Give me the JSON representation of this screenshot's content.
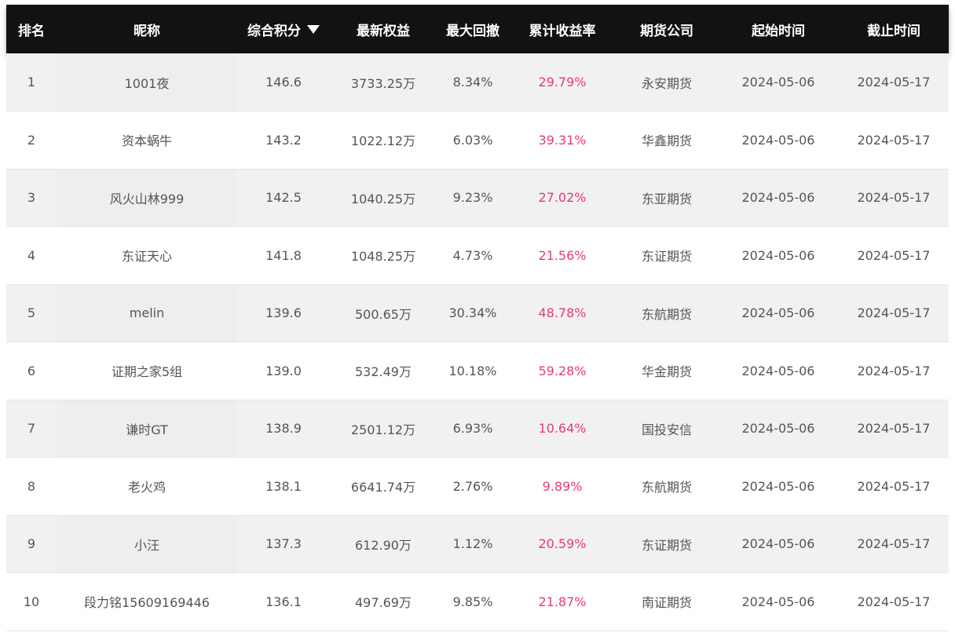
{
  "table": {
    "headers": {
      "rank": "排名",
      "nickname": "昵称",
      "score": "综合积分",
      "equity": "最新权益",
      "drawdown": "最大回撤",
      "return": "累计收益率",
      "company": "期货公司",
      "start": "起始时间",
      "end": "截止时间"
    },
    "sort_indicator": "descending",
    "colors": {
      "header_bg": "#121212",
      "header_text": "#ffffff",
      "return_text": "#e63a79",
      "row_odd": "#f1f1f1",
      "row_even": "#ffffff"
    },
    "rows": [
      {
        "rank": "1",
        "nickname": "1001夜",
        "score": "146.6",
        "equity": "3733.25万",
        "drawdown": "8.34%",
        "return": "29.79%",
        "company": "永安期货",
        "start": "2024-05-06",
        "end": "2024-05-17"
      },
      {
        "rank": "2",
        "nickname": "资本蜗牛",
        "score": "143.2",
        "equity": "1022.12万",
        "drawdown": "6.03%",
        "return": "39.31%",
        "company": "华鑫期货",
        "start": "2024-05-06",
        "end": "2024-05-17"
      },
      {
        "rank": "3",
        "nickname": "风火山林999",
        "score": "142.5",
        "equity": "1040.25万",
        "drawdown": "9.23%",
        "return": "27.02%",
        "company": "东亚期货",
        "start": "2024-05-06",
        "end": "2024-05-17"
      },
      {
        "rank": "4",
        "nickname": "东证天心",
        "score": "141.8",
        "equity": "1048.25万",
        "drawdown": "4.73%",
        "return": "21.56%",
        "company": "东证期货",
        "start": "2024-05-06",
        "end": "2024-05-17"
      },
      {
        "rank": "5",
        "nickname": "melin",
        "score": "139.6",
        "equity": "500.65万",
        "drawdown": "30.34%",
        "return": "48.78%",
        "company": "东航期货",
        "start": "2024-05-06",
        "end": "2024-05-17"
      },
      {
        "rank": "6",
        "nickname": "证期之家5组",
        "score": "139.0",
        "equity": "532.49万",
        "drawdown": "10.18%",
        "return": "59.28%",
        "company": "华金期货",
        "start": "2024-05-06",
        "end": "2024-05-17"
      },
      {
        "rank": "7",
        "nickname": "谦时GT",
        "score": "138.9",
        "equity": "2501.12万",
        "drawdown": "6.93%",
        "return": "10.64%",
        "company": "国投安信",
        "start": "2024-05-06",
        "end": "2024-05-17"
      },
      {
        "rank": "8",
        "nickname": "老火鸡",
        "score": "138.1",
        "equity": "6641.74万",
        "drawdown": "2.76%",
        "return": "9.89%",
        "company": "东航期货",
        "start": "2024-05-06",
        "end": "2024-05-17"
      },
      {
        "rank": "9",
        "nickname": "小汪",
        "score": "137.3",
        "equity": "612.90万",
        "drawdown": "1.12%",
        "return": "20.59%",
        "company": "东证期货",
        "start": "2024-05-06",
        "end": "2024-05-17"
      },
      {
        "rank": "10",
        "nickname": "段力铭15609169446",
        "score": "136.1",
        "equity": "497.69万",
        "drawdown": "9.85%",
        "return": "21.87%",
        "company": "南证期货",
        "start": "2024-05-06",
        "end": "2024-05-17"
      }
    ]
  }
}
